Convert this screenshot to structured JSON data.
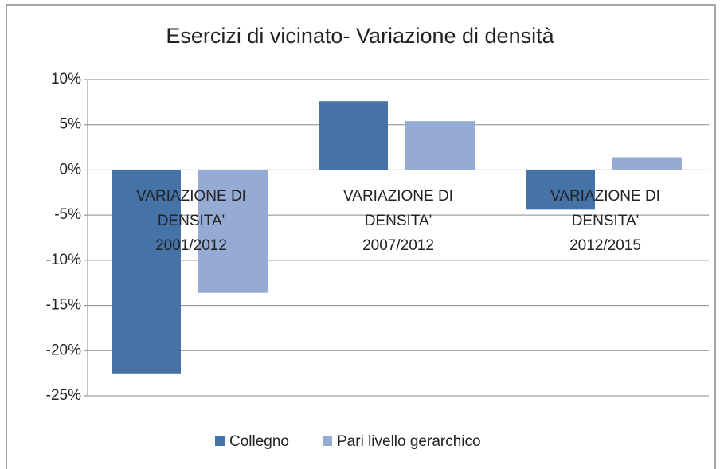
{
  "chart_data": {
    "type": "bar",
    "title": "Esercizi di vicinato- Variazione di densità",
    "categories": [
      "VARIAZIONE DI DENSITA' 2001/2012",
      "VARIAZIONE DI DENSITA' 2007/2012",
      "VARIAZIONE DI DENSITA' 2012/2015"
    ],
    "series": [
      {
        "name": "Collegno",
        "color": "#4572a7",
        "values": [
          -22.6,
          7.6,
          -4.4
        ]
      },
      {
        "name": "Pari livello gerarchico",
        "color": "#95abd3",
        "values": [
          -13.6,
          5.4,
          1.4
        ]
      }
    ],
    "ylim": [
      -25,
      10
    ],
    "yticks": [
      {
        "value": -25,
        "label": "-25%"
      },
      {
        "value": -20,
        "label": "-20%"
      },
      {
        "value": -15,
        "label": "-15%"
      },
      {
        "value": -10,
        "label": "-10%"
      },
      {
        "value": -5,
        "label": "-5%"
      },
      {
        "value": 0,
        "label": "0%"
      },
      {
        "value": 5,
        "label": "5%"
      },
      {
        "value": 10,
        "label": "10%"
      }
    ],
    "grid": true,
    "legend": "bottom"
  }
}
